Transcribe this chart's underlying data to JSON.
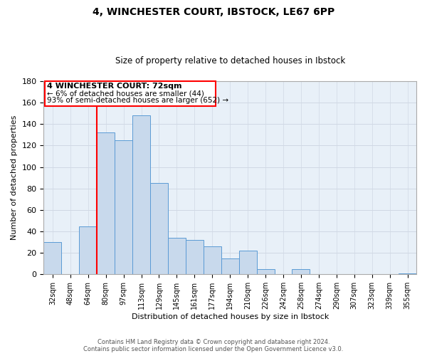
{
  "title": "4, WINCHESTER COURT, IBSTOCK, LE67 6PP",
  "subtitle": "Size of property relative to detached houses in Ibstock",
  "xlabel": "Distribution of detached houses by size in Ibstock",
  "ylabel": "Number of detached properties",
  "bar_color": "#c8d9ec",
  "bar_edge_color": "#5b9bd5",
  "background_color": "#ffffff",
  "grid_color": "#d0d8e4",
  "ax_bg_color": "#e8f0f8",
  "categories": [
    "32sqm",
    "48sqm",
    "64sqm",
    "80sqm",
    "97sqm",
    "113sqm",
    "129sqm",
    "145sqm",
    "161sqm",
    "177sqm",
    "194sqm",
    "210sqm",
    "226sqm",
    "242sqm",
    "258sqm",
    "274sqm",
    "290sqm",
    "307sqm",
    "323sqm",
    "339sqm",
    "355sqm"
  ],
  "values": [
    30,
    0,
    45,
    132,
    125,
    148,
    85,
    34,
    32,
    26,
    15,
    22,
    5,
    0,
    5,
    0,
    0,
    0,
    0,
    0,
    1
  ],
  "ylim": [
    0,
    180
  ],
  "yticks": [
    0,
    20,
    40,
    60,
    80,
    100,
    120,
    140,
    160,
    180
  ],
  "red_line_index": 2.5,
  "annotation_title": "4 WINCHESTER COURT: 72sqm",
  "annotation_line2": "← 6% of detached houses are smaller (44)",
  "annotation_line3": "93% of semi-detached houses are larger (652) →",
  "footer_line1": "Contains HM Land Registry data © Crown copyright and database right 2024.",
  "footer_line2": "Contains public sector information licensed under the Open Government Licence v3.0."
}
